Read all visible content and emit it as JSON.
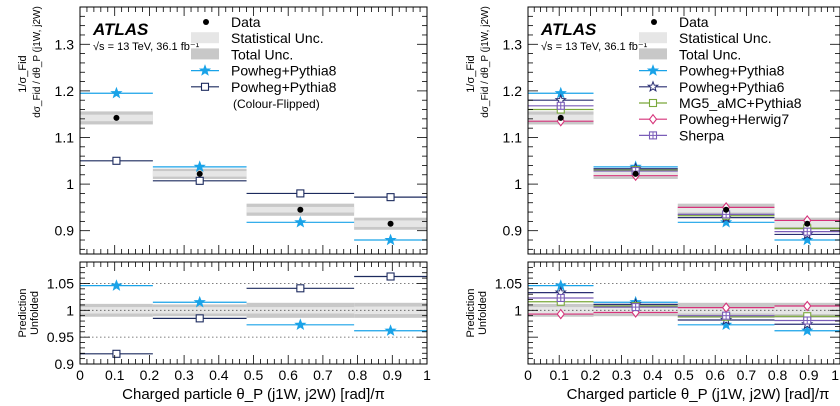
{
  "chart_data": [
    {
      "type": "line",
      "panel": "left",
      "atlas_label": "ATLAS",
      "energy_label": "√s = 13 TeV, 36.1 fb⁻¹",
      "ylabel_main_num": "dσ_Fid / dθ_P (j1W, j2W)",
      "ylabel_main_pre": "1/σ_Fid",
      "ylabel_ratio": [
        "Prediction",
        "Unfolded"
      ],
      "xlabel": "Charged particle θ_P (j1W, j2W) [rad]/π",
      "xlim": [
        0,
        1
      ],
      "ylim_main": [
        0.85,
        1.38
      ],
      "ylim_ratio": [
        0.9,
        1.09
      ],
      "xticks": [
        "0",
        "0.1",
        "0.2",
        "0.3",
        "0.4",
        "0.5",
        "0.6",
        "0.7",
        "0.8",
        "0.9",
        "1"
      ],
      "yticks_main": [
        "0.9",
        "1",
        "1.1",
        "1.2",
        "1.3"
      ],
      "yticks_ratio": [
        "0.9",
        "0.95",
        "1",
        "1.05"
      ],
      "bins": [
        [
          0,
          0.21
        ],
        [
          0.21,
          0.48
        ],
        [
          0.48,
          0.79
        ],
        [
          0.79,
          1.0
        ]
      ],
      "data": {
        "name": "Data",
        "values": [
          1.142,
          1.022,
          0.945,
          0.915
        ],
        "stat": [
          0.007,
          0.006,
          0.006,
          0.007
        ],
        "total": [
          0.014,
          0.011,
          0.013,
          0.013
        ]
      },
      "legend": [
        "Data",
        "Statistical Unc.",
        "Total Unc.",
        "Powheg+Pythia8",
        "Powheg+Pythia8",
        "(Colour-Flipped)"
      ],
      "series": [
        {
          "name": "Powheg+Pythia8",
          "color": "#1aa3e8",
          "marker": "star",
          "values": [
            1.195,
            1.037,
            0.918,
            0.88
          ],
          "ratio": [
            1.046,
            1.015,
            0.973,
            0.962
          ]
        },
        {
          "name": "Powheg+Pythia8 (Colour-Flipped)",
          "color": "#1c2a5e",
          "marker": "square-open",
          "values": [
            1.05,
            1.007,
            0.98,
            0.972
          ],
          "ratio": [
            0.919,
            0.985,
            1.041,
            1.063
          ]
        }
      ],
      "ratio_stat": [
        0.006,
        0.006,
        0.006,
        0.007
      ],
      "ratio_total": [
        0.012,
        0.011,
        0.014,
        0.014
      ]
    },
    {
      "type": "line",
      "panel": "right",
      "atlas_label": "ATLAS",
      "energy_label": "√s = 13 TeV, 36.1 fb⁻¹",
      "ylabel_main_num": "dσ_Fid / dθ_P (j1W, j2W)",
      "ylabel_main_pre": "1/σ_Fid",
      "ylabel_ratio": [
        "Prediction",
        "Unfolded"
      ],
      "xlabel": "Charged particle θ_P (j1W, j2W) [rad]/π",
      "xlim": [
        0,
        1
      ],
      "ylim_main": [
        0.85,
        1.38
      ],
      "ylim_ratio": [
        0.9,
        1.09
      ],
      "xticks": [
        "0",
        "0.1",
        "0.2",
        "0.3",
        "0.4",
        "0.5",
        "0.6",
        "0.7",
        "0.8",
        "0.9",
        "1"
      ],
      "yticks_main": [
        "0.9",
        "1",
        "1.1",
        "1.2",
        "1.3"
      ],
      "yticks_ratio": [
        "1",
        "1.05"
      ],
      "bins": [
        [
          0,
          0.21
        ],
        [
          0.21,
          0.48
        ],
        [
          0.48,
          0.79
        ],
        [
          0.79,
          1.0
        ]
      ],
      "data": {
        "name": "Data",
        "values": [
          1.142,
          1.022,
          0.945,
          0.915
        ],
        "stat": [
          0.007,
          0.006,
          0.006,
          0.007
        ],
        "total": [
          0.014,
          0.011,
          0.013,
          0.013
        ]
      },
      "legend": [
        "Data",
        "Statistical Unc.",
        "Total Unc.",
        "Powheg+Pythia8",
        "Powheg+Pythia6",
        "MG5_aMC+Pythia8",
        "Powheg+Herwig7",
        "Sherpa"
      ],
      "series": [
        {
          "name": "Powheg+Pythia8",
          "color": "#1aa3e8",
          "marker": "star",
          "values": [
            1.195,
            1.037,
            0.918,
            0.88
          ],
          "ratio": [
            1.046,
            1.015,
            0.973,
            0.962
          ]
        },
        {
          "name": "Powheg+Pythia6",
          "color": "#2a2f72",
          "marker": "star-open",
          "values": [
            1.18,
            1.033,
            0.928,
            0.892
          ],
          "ratio": [
            1.033,
            1.011,
            0.982,
            0.974
          ]
        },
        {
          "name": "MG5_aMC+Pythia8",
          "color": "#7aa83a",
          "marker": "square-open",
          "values": [
            1.16,
            1.03,
            0.932,
            0.905
          ],
          "ratio": [
            1.016,
            1.008,
            0.988,
            0.989
          ]
        },
        {
          "name": "Powheg+Herwig7",
          "color": "#d6337a",
          "marker": "diamond-open",
          "values": [
            1.135,
            1.018,
            0.95,
            0.922
          ],
          "ratio": [
            0.993,
            0.996,
            1.005,
            1.008
          ]
        },
        {
          "name": "Sherpa",
          "color": "#7a5db8",
          "marker": "plus-square",
          "values": [
            1.168,
            1.028,
            0.935,
            0.898
          ],
          "ratio": [
            1.023,
            1.006,
            0.99,
            0.981
          ]
        }
      ],
      "ratio_stat": [
        0.006,
        0.006,
        0.006,
        0.007
      ],
      "ratio_total": [
        0.012,
        0.011,
        0.014,
        0.014
      ]
    }
  ]
}
